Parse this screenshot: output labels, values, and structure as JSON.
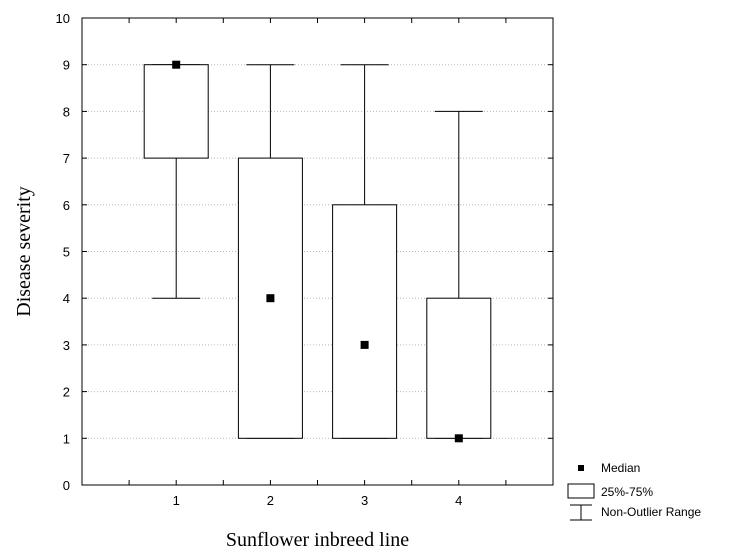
{
  "chart_data": {
    "type": "boxplot",
    "xlabel": "Sunflower inbreed line",
    "ylabel": "Disease severity",
    "ylim": [
      0,
      10
    ],
    "yticks": [
      0,
      1,
      2,
      3,
      4,
      5,
      6,
      7,
      8,
      9,
      10
    ],
    "categories": [
      "1",
      "2",
      "3",
      "4"
    ],
    "x_range": [
      0,
      5
    ],
    "grid": "horizontal dotted",
    "legend_position": "bottom-right",
    "boxes": [
      {
        "category": "1",
        "median": 9,
        "q1": 7,
        "q3": 9,
        "whisker_low": 4,
        "whisker_high": 9
      },
      {
        "category": "2",
        "median": 4,
        "q1": 1,
        "q3": 7,
        "whisker_low": 1,
        "whisker_high": 9
      },
      {
        "category": "3",
        "median": 3,
        "q1": 1,
        "q3": 6,
        "whisker_low": 1,
        "whisker_high": 9
      },
      {
        "category": "4",
        "median": 1,
        "q1": 1,
        "q3": 4,
        "whisker_low": 1,
        "whisker_high": 8
      }
    ],
    "legend": {
      "median": "Median",
      "box": "25%-75%",
      "range": "Non-Outlier Range"
    }
  }
}
